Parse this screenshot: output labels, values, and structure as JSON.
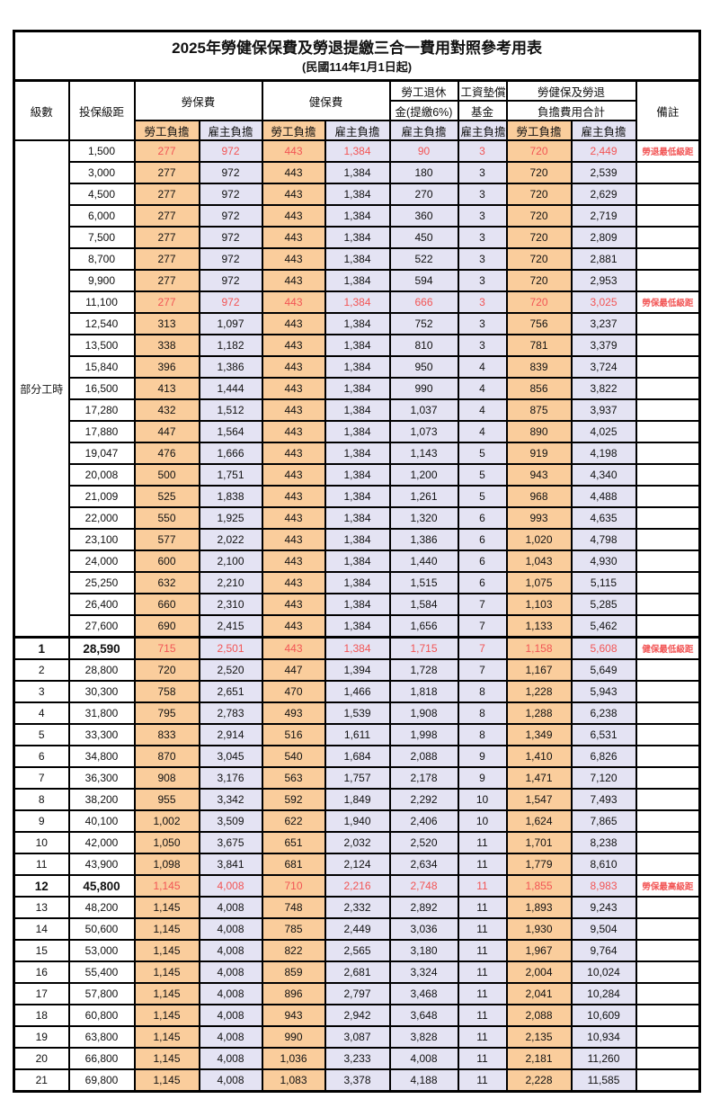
{
  "title": "2025年勞健保保費及勞退提繳三合一費用對照參考用表",
  "subtitle": "(民國114年1月1日起)",
  "headers": {
    "level": "級數",
    "bracket": "投保級距",
    "labor_insurance": "勞保費",
    "health_insurance": "健保費",
    "pension_line1": "勞工退休",
    "pension_line2": "金(提繳6%)",
    "wage_fund_line1": "工資墊償",
    "wage_fund_line2": "基金",
    "total_line1": "勞健保及勞退",
    "total_line2": "負擔費用合計",
    "remark": "備註",
    "employee_burden": "勞工負擔",
    "employer_burden": "雇主負擔"
  },
  "part_time_label": "部分工時",
  "colors": {
    "employee_bg": "#FACD9C",
    "employer_bg": "#E4E3F3",
    "highlight_text": "#F25555"
  },
  "rows": [
    {
      "level": "",
      "bracket": "1,500",
      "cells": [
        "277",
        "972",
        "443",
        "1,384",
        "90",
        "3",
        "720",
        "2,449"
      ],
      "remark": "勞退最低級距",
      "highlight": true,
      "bold": false
    },
    {
      "level": "",
      "bracket": "3,000",
      "cells": [
        "277",
        "972",
        "443",
        "1,384",
        "180",
        "3",
        "720",
        "2,539"
      ],
      "remark": "",
      "highlight": false,
      "bold": false
    },
    {
      "level": "",
      "bracket": "4,500",
      "cells": [
        "277",
        "972",
        "443",
        "1,384",
        "270",
        "3",
        "720",
        "2,629"
      ],
      "remark": "",
      "highlight": false,
      "bold": false
    },
    {
      "level": "",
      "bracket": "6,000",
      "cells": [
        "277",
        "972",
        "443",
        "1,384",
        "360",
        "3",
        "720",
        "2,719"
      ],
      "remark": "",
      "highlight": false,
      "bold": false
    },
    {
      "level": "",
      "bracket": "7,500",
      "cells": [
        "277",
        "972",
        "443",
        "1,384",
        "450",
        "3",
        "720",
        "2,809"
      ],
      "remark": "",
      "highlight": false,
      "bold": false
    },
    {
      "level": "",
      "bracket": "8,700",
      "cells": [
        "277",
        "972",
        "443",
        "1,384",
        "522",
        "3",
        "720",
        "2,881"
      ],
      "remark": "",
      "highlight": false,
      "bold": false
    },
    {
      "level": "",
      "bracket": "9,900",
      "cells": [
        "277",
        "972",
        "443",
        "1,384",
        "594",
        "3",
        "720",
        "2,953"
      ],
      "remark": "",
      "highlight": false,
      "bold": false
    },
    {
      "level": "",
      "bracket": "11,100",
      "cells": [
        "277",
        "972",
        "443",
        "1,384",
        "666",
        "3",
        "720",
        "3,025"
      ],
      "remark": "勞保最低級距",
      "highlight": true,
      "bold": false
    },
    {
      "level": "",
      "bracket": "12,540",
      "cells": [
        "313",
        "1,097",
        "443",
        "1,384",
        "752",
        "3",
        "756",
        "3,237"
      ],
      "remark": "",
      "highlight": false,
      "bold": false
    },
    {
      "level": "",
      "bracket": "13,500",
      "cells": [
        "338",
        "1,182",
        "443",
        "1,384",
        "810",
        "3",
        "781",
        "3,379"
      ],
      "remark": "",
      "highlight": false,
      "bold": false
    },
    {
      "level": "",
      "bracket": "15,840",
      "cells": [
        "396",
        "1,386",
        "443",
        "1,384",
        "950",
        "4",
        "839",
        "3,724"
      ],
      "remark": "",
      "highlight": false,
      "bold": false
    },
    {
      "level": "",
      "bracket": "16,500",
      "cells": [
        "413",
        "1,444",
        "443",
        "1,384",
        "990",
        "4",
        "856",
        "3,822"
      ],
      "remark": "",
      "highlight": false,
      "bold": false
    },
    {
      "level": "",
      "bracket": "17,280",
      "cells": [
        "432",
        "1,512",
        "443",
        "1,384",
        "1,037",
        "4",
        "875",
        "3,937"
      ],
      "remark": "",
      "highlight": false,
      "bold": false
    },
    {
      "level": "",
      "bracket": "17,880",
      "cells": [
        "447",
        "1,564",
        "443",
        "1,384",
        "1,073",
        "4",
        "890",
        "4,025"
      ],
      "remark": "",
      "highlight": false,
      "bold": false
    },
    {
      "level": "",
      "bracket": "19,047",
      "cells": [
        "476",
        "1,666",
        "443",
        "1,384",
        "1,143",
        "5",
        "919",
        "4,198"
      ],
      "remark": "",
      "highlight": false,
      "bold": false
    },
    {
      "level": "",
      "bracket": "20,008",
      "cells": [
        "500",
        "1,751",
        "443",
        "1,384",
        "1,200",
        "5",
        "943",
        "4,340"
      ],
      "remark": "",
      "highlight": false,
      "bold": false
    },
    {
      "level": "",
      "bracket": "21,009",
      "cells": [
        "525",
        "1,838",
        "443",
        "1,384",
        "1,261",
        "5",
        "968",
        "4,488"
      ],
      "remark": "",
      "highlight": false,
      "bold": false
    },
    {
      "level": "",
      "bracket": "22,000",
      "cells": [
        "550",
        "1,925",
        "443",
        "1,384",
        "1,320",
        "6",
        "993",
        "4,635"
      ],
      "remark": "",
      "highlight": false,
      "bold": false
    },
    {
      "level": "",
      "bracket": "23,100",
      "cells": [
        "577",
        "2,022",
        "443",
        "1,384",
        "1,386",
        "6",
        "1,020",
        "4,798"
      ],
      "remark": "",
      "highlight": false,
      "bold": false
    },
    {
      "level": "",
      "bracket": "24,000",
      "cells": [
        "600",
        "2,100",
        "443",
        "1,384",
        "1,440",
        "6",
        "1,043",
        "4,930"
      ],
      "remark": "",
      "highlight": false,
      "bold": false
    },
    {
      "level": "",
      "bracket": "25,250",
      "cells": [
        "632",
        "2,210",
        "443",
        "1,384",
        "1,515",
        "6",
        "1,075",
        "5,115"
      ],
      "remark": "",
      "highlight": false,
      "bold": false
    },
    {
      "level": "",
      "bracket": "26,400",
      "cells": [
        "660",
        "2,310",
        "443",
        "1,384",
        "1,584",
        "7",
        "1,103",
        "5,285"
      ],
      "remark": "",
      "highlight": false,
      "bold": false
    },
    {
      "level": "",
      "bracket": "27,600",
      "cells": [
        "690",
        "2,415",
        "443",
        "1,384",
        "1,656",
        "7",
        "1,133",
        "5,462"
      ],
      "remark": "",
      "highlight": false,
      "bold": false
    },
    {
      "level": "1",
      "bracket": "28,590",
      "cells": [
        "715",
        "2,501",
        "443",
        "1,384",
        "1,715",
        "7",
        "1,158",
        "5,608"
      ],
      "remark": "健保最低級距",
      "highlight": true,
      "bold": true,
      "sectionTop": true
    },
    {
      "level": "2",
      "bracket": "28,800",
      "cells": [
        "720",
        "2,520",
        "447",
        "1,394",
        "1,728",
        "7",
        "1,167",
        "5,649"
      ],
      "remark": "",
      "highlight": false,
      "bold": false
    },
    {
      "level": "3",
      "bracket": "30,300",
      "cells": [
        "758",
        "2,651",
        "470",
        "1,466",
        "1,818",
        "8",
        "1,228",
        "5,943"
      ],
      "remark": "",
      "highlight": false,
      "bold": false
    },
    {
      "level": "4",
      "bracket": "31,800",
      "cells": [
        "795",
        "2,783",
        "493",
        "1,539",
        "1,908",
        "8",
        "1,288",
        "6,238"
      ],
      "remark": "",
      "highlight": false,
      "bold": false
    },
    {
      "level": "5",
      "bracket": "33,300",
      "cells": [
        "833",
        "2,914",
        "516",
        "1,611",
        "1,998",
        "8",
        "1,349",
        "6,531"
      ],
      "remark": "",
      "highlight": false,
      "bold": false
    },
    {
      "level": "6",
      "bracket": "34,800",
      "cells": [
        "870",
        "3,045",
        "540",
        "1,684",
        "2,088",
        "9",
        "1,410",
        "6,826"
      ],
      "remark": "",
      "highlight": false,
      "bold": false
    },
    {
      "level": "7",
      "bracket": "36,300",
      "cells": [
        "908",
        "3,176",
        "563",
        "1,757",
        "2,178",
        "9",
        "1,471",
        "7,120"
      ],
      "remark": "",
      "highlight": false,
      "bold": false
    },
    {
      "level": "8",
      "bracket": "38,200",
      "cells": [
        "955",
        "3,342",
        "592",
        "1,849",
        "2,292",
        "10",
        "1,547",
        "7,493"
      ],
      "remark": "",
      "highlight": false,
      "bold": false
    },
    {
      "level": "9",
      "bracket": "40,100",
      "cells": [
        "1,002",
        "3,509",
        "622",
        "1,940",
        "2,406",
        "10",
        "1,624",
        "7,865"
      ],
      "remark": "",
      "highlight": false,
      "bold": false
    },
    {
      "level": "10",
      "bracket": "42,000",
      "cells": [
        "1,050",
        "3,675",
        "651",
        "2,032",
        "2,520",
        "11",
        "1,701",
        "8,238"
      ],
      "remark": "",
      "highlight": false,
      "bold": false
    },
    {
      "level": "11",
      "bracket": "43,900",
      "cells": [
        "1,098",
        "3,841",
        "681",
        "2,124",
        "2,634",
        "11",
        "1,779",
        "8,610"
      ],
      "remark": "",
      "highlight": false,
      "bold": false
    },
    {
      "level": "12",
      "bracket": "45,800",
      "cells": [
        "1,145",
        "4,008",
        "710",
        "2,216",
        "2,748",
        "11",
        "1,855",
        "8,983"
      ],
      "remark": "勞保最高級距",
      "highlight": true,
      "bold": true
    },
    {
      "level": "13",
      "bracket": "48,200",
      "cells": [
        "1,145",
        "4,008",
        "748",
        "2,332",
        "2,892",
        "11",
        "1,893",
        "9,243"
      ],
      "remark": "",
      "highlight": false,
      "bold": false
    },
    {
      "level": "14",
      "bracket": "50,600",
      "cells": [
        "1,145",
        "4,008",
        "785",
        "2,449",
        "3,036",
        "11",
        "1,930",
        "9,504"
      ],
      "remark": "",
      "highlight": false,
      "bold": false
    },
    {
      "level": "15",
      "bracket": "53,000",
      "cells": [
        "1,145",
        "4,008",
        "822",
        "2,565",
        "3,180",
        "11",
        "1,967",
        "9,764"
      ],
      "remark": "",
      "highlight": false,
      "bold": false
    },
    {
      "level": "16",
      "bracket": "55,400",
      "cells": [
        "1,145",
        "4,008",
        "859",
        "2,681",
        "3,324",
        "11",
        "2,004",
        "10,024"
      ],
      "remark": "",
      "highlight": false,
      "bold": false
    },
    {
      "level": "17",
      "bracket": "57,800",
      "cells": [
        "1,145",
        "4,008",
        "896",
        "2,797",
        "3,468",
        "11",
        "2,041",
        "10,284"
      ],
      "remark": "",
      "highlight": false,
      "bold": false
    },
    {
      "level": "18",
      "bracket": "60,800",
      "cells": [
        "1,145",
        "4,008",
        "943",
        "2,942",
        "3,648",
        "11",
        "2,088",
        "10,609"
      ],
      "remark": "",
      "highlight": false,
      "bold": false
    },
    {
      "level": "19",
      "bracket": "63,800",
      "cells": [
        "1,145",
        "4,008",
        "990",
        "3,087",
        "3,828",
        "11",
        "2,135",
        "10,934"
      ],
      "remark": "",
      "highlight": false,
      "bold": false
    },
    {
      "level": "20",
      "bracket": "66,800",
      "cells": [
        "1,145",
        "4,008",
        "1,036",
        "3,233",
        "4,008",
        "11",
        "2,181",
        "11,260"
      ],
      "remark": "",
      "highlight": false,
      "bold": false
    },
    {
      "level": "21",
      "bracket": "69,800",
      "cells": [
        "1,145",
        "4,008",
        "1,083",
        "3,378",
        "4,188",
        "11",
        "2,228",
        "11,585"
      ],
      "remark": "",
      "highlight": false,
      "bold": false
    }
  ]
}
